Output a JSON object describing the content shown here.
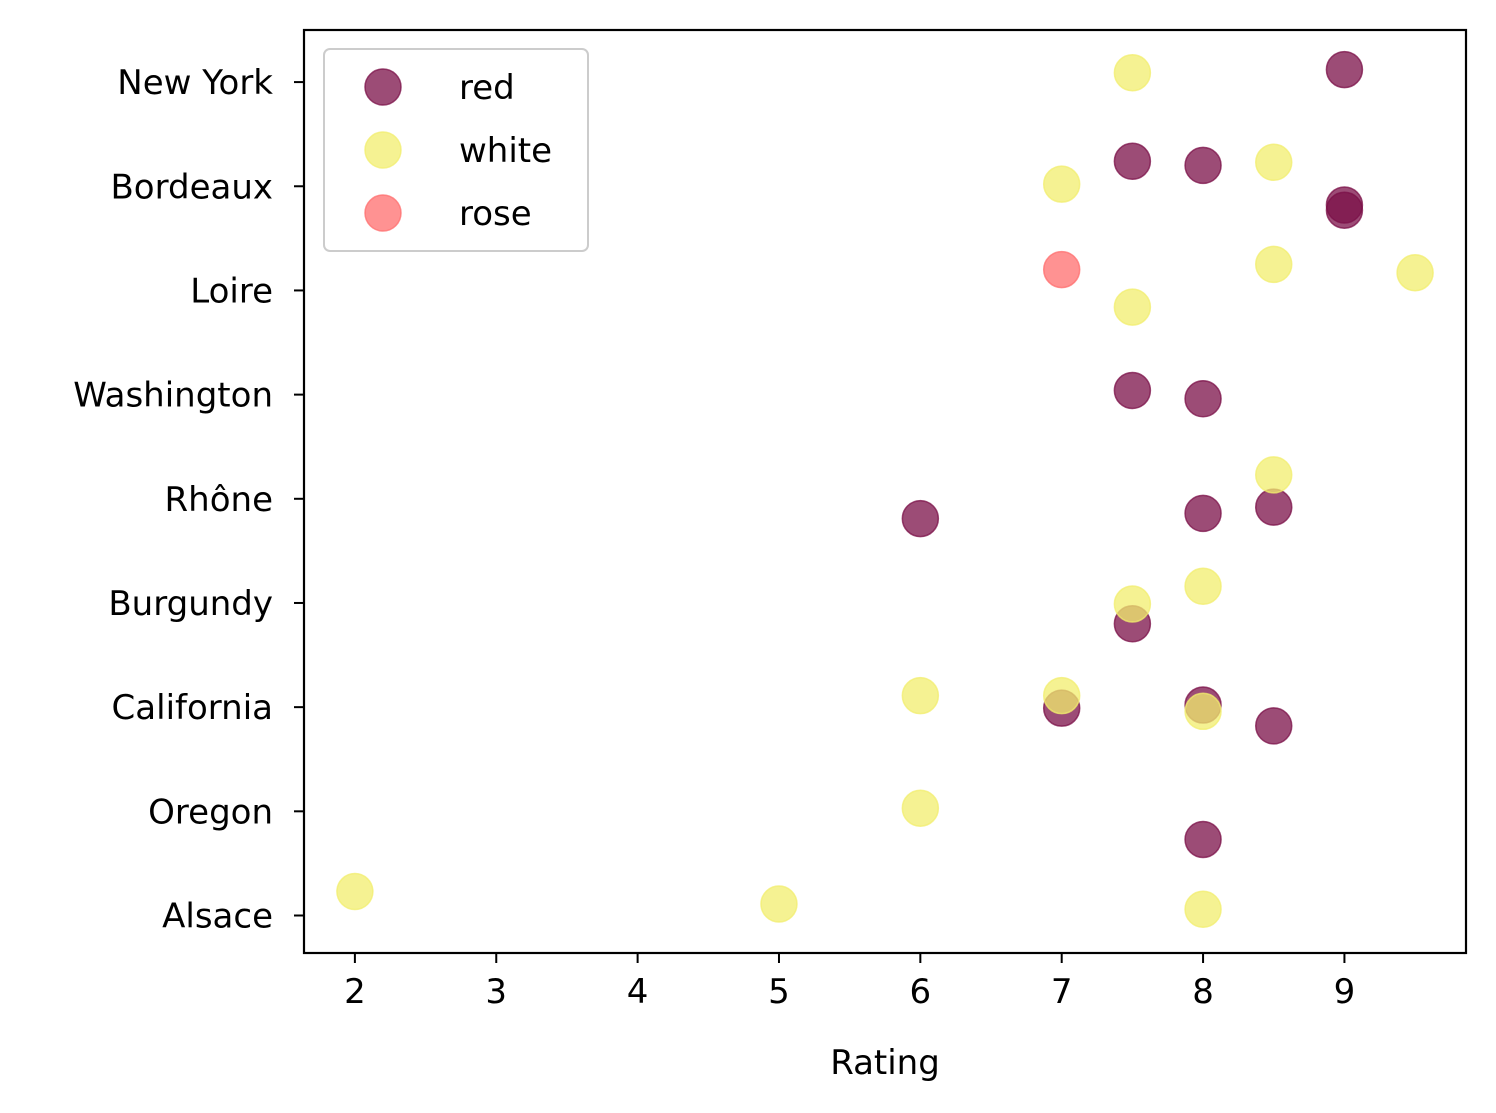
{
  "chart_data": {
    "type": "scatter",
    "title": "",
    "xlabel": "Rating",
    "ylabel": "",
    "xlim": [
      1.64,
      9.86
    ],
    "ylim": [
      -0.36,
      8.5
    ],
    "x_ticks": [
      "2",
      "3",
      "4",
      "5",
      "6",
      "7",
      "8",
      "9"
    ],
    "y_categories": [
      "Alsace",
      "Oregon",
      "California",
      "Burgundy",
      "Rhône",
      "Washington",
      "Loire",
      "Bordeaux",
      "New York"
    ],
    "grid": false,
    "legend_position": "upper-left",
    "marker_alpha": 0.75,
    "series": [
      {
        "name": "red",
        "color": "#7b1048",
        "points": [
          {
            "x": 9.0,
            "y": 8.12
          },
          {
            "x": 7.5,
            "y": 7.24
          },
          {
            "x": 8.0,
            "y": 7.2
          },
          {
            "x": 9.0,
            "y": 6.82
          },
          {
            "x": 9.0,
            "y": 6.77
          },
          {
            "x": 7.5,
            "y": 5.04
          },
          {
            "x": 8.0,
            "y": 4.96
          },
          {
            "x": 6.0,
            "y": 3.81
          },
          {
            "x": 8.0,
            "y": 3.86
          },
          {
            "x": 8.5,
            "y": 3.92
          },
          {
            "x": 7.5,
            "y": 2.8
          },
          {
            "x": 7.0,
            "y": 1.99
          },
          {
            "x": 8.0,
            "y": 2.02
          },
          {
            "x": 8.5,
            "y": 1.82
          },
          {
            "x": 8.0,
            "y": 0.73
          }
        ]
      },
      {
        "name": "white",
        "color": "#f2ee6e",
        "points": [
          {
            "x": 7.5,
            "y": 8.09
          },
          {
            "x": 8.5,
            "y": 7.23
          },
          {
            "x": 7.0,
            "y": 7.02
          },
          {
            "x": 8.5,
            "y": 6.25
          },
          {
            "x": 9.5,
            "y": 6.17
          },
          {
            "x": 7.5,
            "y": 5.84
          },
          {
            "x": 8.5,
            "y": 4.23
          },
          {
            "x": 8.0,
            "y": 3.16
          },
          {
            "x": 7.5,
            "y": 2.99
          },
          {
            "x": 6.0,
            "y": 2.11
          },
          {
            "x": 7.0,
            "y": 2.11
          },
          {
            "x": 8.0,
            "y": 1.96
          },
          {
            "x": 6.0,
            "y": 1.03
          },
          {
            "x": 2.0,
            "y": 0.23
          },
          {
            "x": 5.0,
            "y": 0.11
          },
          {
            "x": 8.0,
            "y": 0.06
          }
        ]
      },
      {
        "name": "rose",
        "color": "#ff6e6e",
        "points": [
          {
            "x": 7.0,
            "y": 6.2
          }
        ]
      }
    ]
  }
}
